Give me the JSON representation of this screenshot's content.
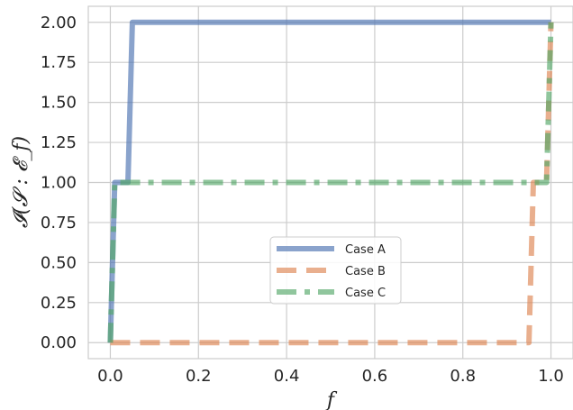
{
  "chart_data": {
    "type": "line",
    "title": "",
    "xlabel": "f",
    "ylabel": "𝓘(𝓢 : 𝓔_f)",
    "xlim": [
      -0.05,
      1.05
    ],
    "ylim": [
      -0.1,
      2.1
    ],
    "xticks": [
      0.0,
      0.2,
      0.4,
      0.6,
      0.8,
      1.0
    ],
    "xtick_labels": [
      "0.0",
      "0.2",
      "0.4",
      "0.6",
      "0.8",
      "1.0"
    ],
    "yticks": [
      0.0,
      0.25,
      0.5,
      0.75,
      1.0,
      1.25,
      1.5,
      1.75,
      2.0
    ],
    "ytick_labels": [
      "0.00",
      "0.25",
      "0.50",
      "0.75",
      "1.00",
      "1.25",
      "1.50",
      "1.75",
      "2.00"
    ],
    "grid": true,
    "legend_position": "lower-center",
    "series": [
      {
        "name": "Case A",
        "color": "#4c72b0",
        "dash": "solid",
        "x": [
          0.0,
          0.01,
          0.04,
          0.05,
          1.0
        ],
        "y": [
          0.0,
          1.0,
          1.0,
          2.0,
          2.0
        ]
      },
      {
        "name": "Case B",
        "color": "#dd8452",
        "dash": "dashed",
        "x": [
          0.0,
          0.95,
          0.96,
          0.99,
          1.0
        ],
        "y": [
          0.0,
          0.0,
          1.0,
          1.0,
          2.0
        ]
      },
      {
        "name": "Case C",
        "color": "#55a868",
        "dash": "dashdot",
        "x": [
          0.0,
          0.01,
          0.99,
          1.0
        ],
        "y": [
          0.0,
          1.0,
          1.0,
          2.0
        ]
      }
    ]
  }
}
